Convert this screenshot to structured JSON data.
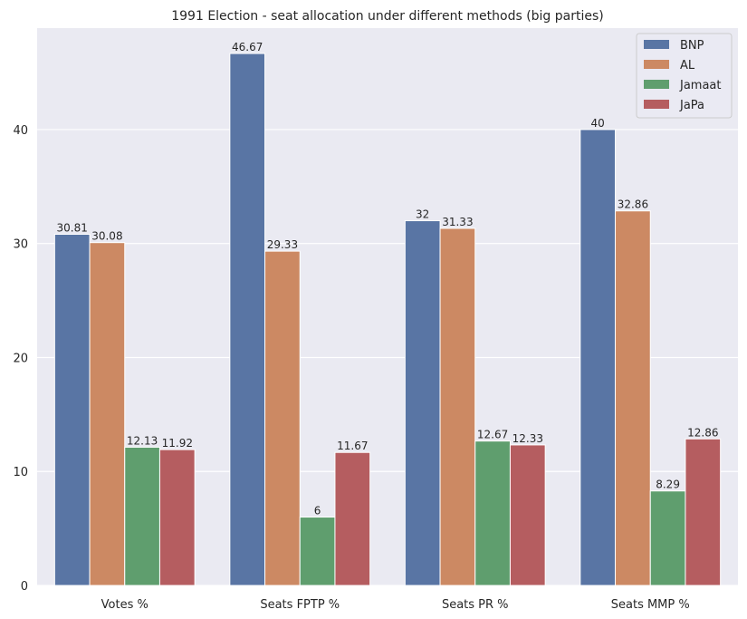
{
  "chart_data": {
    "type": "bar",
    "title": "1991 Election - seat allocation under different methods (big parties)",
    "xlabel": "",
    "ylabel": "",
    "categories": [
      "Votes %",
      "Seats FPTP %",
      "Seats PR %",
      "Seats MMP %"
    ],
    "series": [
      {
        "name": "BNP",
        "color": "#5975a4",
        "values": [
          30.81,
          46.67,
          32,
          40
        ],
        "labels": [
          "30.81",
          "46.67",
          "32",
          "40"
        ]
      },
      {
        "name": "AL",
        "color": "#cc8963",
        "values": [
          30.08,
          29.33,
          31.33,
          32.86
        ],
        "labels": [
          "30.08",
          "29.33",
          "31.33",
          "32.86"
        ]
      },
      {
        "name": "Jamaat",
        "color": "#5f9e6e",
        "values": [
          12.13,
          6,
          12.67,
          8.29
        ],
        "labels": [
          "12.13",
          "6",
          "12.67",
          "8.29"
        ]
      },
      {
        "name": "JaPa",
        "color": "#b55d60",
        "values": [
          11.92,
          11.67,
          12.33,
          12.86
        ],
        "labels": [
          "11.92",
          "11.67",
          "12.33",
          "12.86"
        ]
      }
    ],
    "yticks": [
      "0",
      "10",
      "20",
      "30",
      "40"
    ],
    "ylim": [
      0,
      48.9
    ],
    "grid": true,
    "legend": "top-right",
    "background": "#eaeaf2"
  }
}
